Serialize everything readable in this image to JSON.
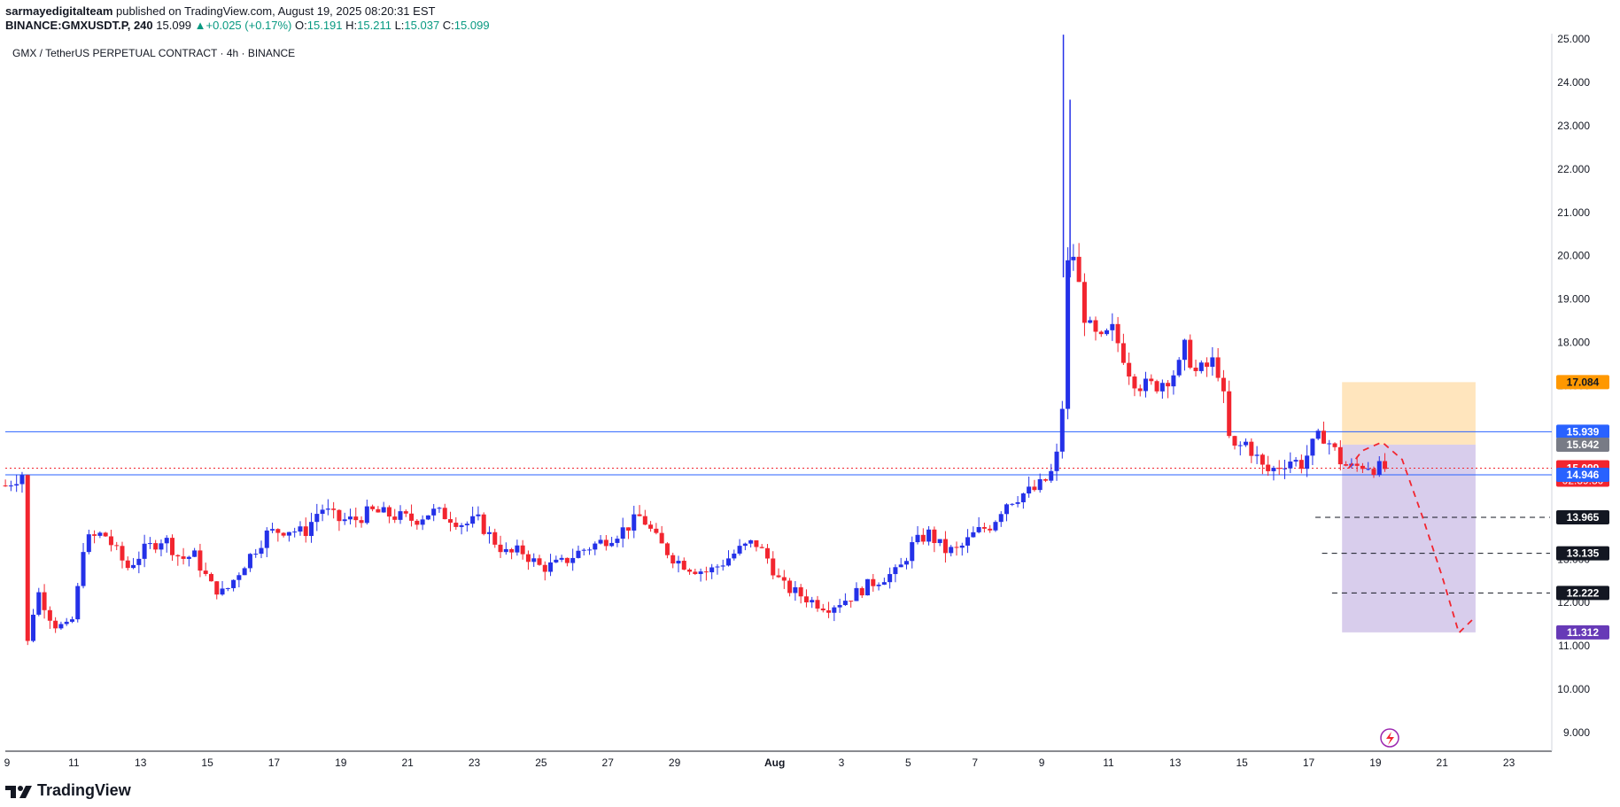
{
  "header": {
    "author": "sarmayedigitalteam",
    "published_text": "published on TradingView.com, August 19, 2025 08:20:31 EST",
    "symbol": "BINANCE:GMXUSDT.P, 240",
    "last": "15.099",
    "change": "+0.025 (+0.17%)",
    "o_label": "O:",
    "o": "15.191",
    "h_label": "H:",
    "h": "15.211",
    "l_label": "L:",
    "l": "15.037",
    "c_label": "C:",
    "c": "15.099"
  },
  "footer": {
    "brand": "TradingView",
    "logo_icon": "tradingview-logo-icon"
  },
  "colors": {
    "up": "#2431e8",
    "down": "#f2252f",
    "grid": "#e0e3eb",
    "level": "#2962ff",
    "target": "#ffe0b2",
    "stop": "#d1c4e9"
  },
  "chart_data": {
    "type": "candlestick",
    "title": "GMX / TetherUS PERPETUAL CONTRACT · 4h · BINANCE",
    "y_ticks": [
      "25.000",
      "24.000",
      "23.000",
      "22.000",
      "21.000",
      "20.000",
      "19.000",
      "18.000",
      "17.000",
      "16.000",
      "15.000",
      "14.000",
      "13.000",
      "12.000",
      "11.000",
      "10.000",
      "9.000"
    ],
    "ylim": [
      8.6,
      25.3
    ],
    "x_ticks": [
      {
        "label": "9",
        "day": 9
      },
      {
        "label": "11",
        "day": 11
      },
      {
        "label": "13",
        "day": 13
      },
      {
        "label": "15",
        "day": 15
      },
      {
        "label": "17",
        "day": 17
      },
      {
        "label": "19",
        "day": 19
      },
      {
        "label": "21",
        "day": 21
      },
      {
        "label": "23",
        "day": 23
      },
      {
        "label": "25",
        "day": 25
      },
      {
        "label": "27",
        "day": 27
      },
      {
        "label": "29",
        "day": 29
      },
      {
        "label": "Aug",
        "day": 32
      },
      {
        "label": "3",
        "day": 34
      },
      {
        "label": "5",
        "day": 36
      },
      {
        "label": "7",
        "day": 38
      },
      {
        "label": "9",
        "day": 40
      },
      {
        "label": "11",
        "day": 42
      },
      {
        "label": "13",
        "day": 44
      },
      {
        "label": "15",
        "day": 46
      },
      {
        "label": "17",
        "day": 48
      },
      {
        "label": "19",
        "day": 50
      },
      {
        "label": "21",
        "day": 52
      },
      {
        "label": "23",
        "day": 54
      }
    ],
    "xlim": [
      8.95,
      55.5
    ],
    "price_path": [
      [
        8.95,
        14.7
      ],
      [
        9.5,
        15.0
      ],
      [
        9.6,
        11.0
      ],
      [
        9.9,
        12.3
      ],
      [
        10.4,
        11.5
      ],
      [
        10.9,
        11.4
      ],
      [
        11.1,
        12.2
      ],
      [
        11.3,
        13.4
      ],
      [
        11.9,
        13.6
      ],
      [
        12.6,
        12.8
      ],
      [
        13.1,
        13.2
      ],
      [
        13.7,
        13.5
      ],
      [
        14.2,
        13.0
      ],
      [
        14.6,
        13.1
      ],
      [
        15.1,
        12.4
      ],
      [
        15.5,
        12.2
      ],
      [
        16.2,
        13.0
      ],
      [
        16.8,
        13.6
      ],
      [
        17.4,
        13.7
      ],
      [
        17.9,
        13.6
      ],
      [
        18.4,
        14.2
      ],
      [
        18.9,
        13.9
      ],
      [
        19.4,
        13.9
      ],
      [
        19.9,
        14.1
      ],
      [
        20.6,
        14.0
      ],
      [
        21.2,
        13.9
      ],
      [
        21.7,
        14.1
      ],
      [
        22.2,
        14.0
      ],
      [
        22.7,
        13.8
      ],
      [
        23.1,
        13.9
      ],
      [
        23.5,
        13.5
      ],
      [
        24.0,
        13.1
      ],
      [
        24.4,
        13.2
      ],
      [
        25.0,
        12.8
      ],
      [
        25.6,
        12.9
      ],
      [
        26.2,
        13.2
      ],
      [
        26.8,
        13.4
      ],
      [
        27.5,
        13.7
      ],
      [
        28.0,
        14.0
      ],
      [
        28.5,
        13.4
      ],
      [
        29.0,
        13.0
      ],
      [
        29.5,
        12.8
      ],
      [
        30.0,
        12.7
      ],
      [
        30.4,
        12.9
      ],
      [
        30.9,
        13.2
      ],
      [
        31.4,
        13.4
      ],
      [
        31.8,
        13.0
      ],
      [
        32.2,
        12.4
      ],
      [
        32.7,
        12.2
      ],
      [
        33.2,
        12.0
      ],
      [
        33.6,
        11.9
      ],
      [
        34.2,
        12.1
      ],
      [
        34.8,
        12.4
      ],
      [
        35.3,
        12.6
      ],
      [
        35.7,
        12.7
      ],
      [
        36.1,
        13.3
      ],
      [
        36.6,
        13.6
      ],
      [
        37.1,
        13.2
      ],
      [
        37.5,
        13.2
      ],
      [
        38.0,
        13.6
      ],
      [
        38.5,
        13.8
      ],
      [
        38.9,
        14.3
      ],
      [
        39.4,
        14.5
      ],
      [
        39.8,
        14.6
      ],
      [
        40.1,
        14.8
      ],
      [
        40.4,
        15.1
      ],
      [
        40.6,
        16.2
      ],
      [
        40.8,
        20.1
      ],
      [
        41.0,
        20.0
      ],
      [
        41.2,
        18.8
      ],
      [
        41.5,
        18.2
      ],
      [
        41.8,
        18.0
      ],
      [
        42.1,
        18.3
      ],
      [
        42.4,
        17.8
      ],
      [
        42.7,
        17.2
      ],
      [
        43.0,
        17.0
      ],
      [
        43.4,
        17.0
      ],
      [
        43.8,
        17.2
      ],
      [
        44.1,
        17.4
      ],
      [
        44.3,
        17.9
      ],
      [
        44.6,
        17.3
      ],
      [
        44.9,
        17.4
      ],
      [
        45.2,
        17.6
      ],
      [
        45.4,
        17.0
      ],
      [
        45.6,
        15.8
      ],
      [
        45.8,
        15.5
      ],
      [
        46.1,
        15.7
      ],
      [
        46.4,
        15.4
      ],
      [
        46.7,
        15.0
      ],
      [
        47.0,
        15.1
      ],
      [
        47.4,
        15.3
      ],
      [
        47.8,
        15.2
      ],
      [
        48.1,
        15.6
      ],
      [
        48.4,
        15.9
      ],
      [
        48.7,
        15.6
      ],
      [
        49.0,
        15.2
      ],
      [
        49.3,
        15.1
      ],
      [
        49.7,
        15.2
      ],
      [
        50.0,
        15.1
      ],
      [
        50.3,
        15.09
      ]
    ],
    "spike_wicks": [
      {
        "day": 40.65,
        "high": 25.1
      },
      {
        "day": 40.85,
        "high": 23.6
      }
    ],
    "levels": [
      {
        "value": 15.939,
        "label": "15.939",
        "style": "solid",
        "color": "#2962ff"
      },
      {
        "value": 14.946,
        "label": "14.946",
        "style": "solid",
        "color": "#2962ff"
      },
      {
        "value": 15.099,
        "label": "15.099",
        "style": "dotted",
        "color": "#f2252f"
      }
    ],
    "targets": [
      {
        "value": 13.965,
        "label": "13.965",
        "start_day": 48.2
      },
      {
        "value": 13.135,
        "label": "13.135",
        "start_day": 48.4
      },
      {
        "value": 12.222,
        "label": "12.222",
        "start_day": 48.7
      }
    ],
    "position": {
      "start_day": 49.0,
      "end_day": 53.0,
      "stop": 17.084,
      "stop_label": "17.084",
      "entry": 15.642,
      "entry_label": "15.642",
      "target": 11.312,
      "target_label": "11.312"
    },
    "last_price": {
      "value": 15.099,
      "label": "15.099",
      "countdown": "02:39:30"
    },
    "projection": [
      [
        49.2,
        15.1
      ],
      [
        49.6,
        15.5
      ],
      [
        50.2,
        15.7
      ],
      [
        50.8,
        15.3
      ],
      [
        51.4,
        14.0
      ],
      [
        52.0,
        12.6
      ],
      [
        52.5,
        11.3
      ],
      [
        52.9,
        11.6
      ]
    ]
  }
}
